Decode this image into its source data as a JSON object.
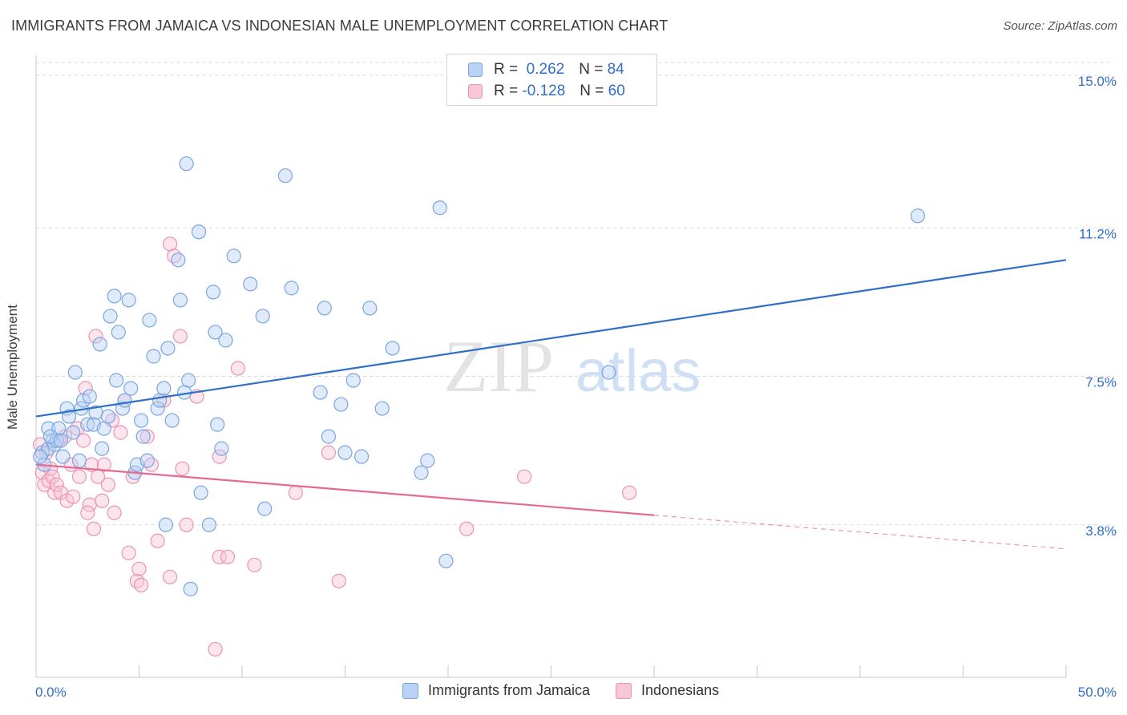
{
  "header": {
    "title": "IMMIGRANTS FROM JAMAICA VS INDONESIAN MALE UNEMPLOYMENT CORRELATION CHART",
    "source": "Source: ZipAtlas.com"
  },
  "watermark": {
    "zip": "ZIP",
    "atlas": "atlas"
  },
  "legend": {
    "rows": [
      {
        "r_label": "R =",
        "r_value": "0.262",
        "n_label": "N =",
        "n_value": "84"
      },
      {
        "r_label": "R =",
        "r_value": "-0.128",
        "n_label": "N =",
        "n_value": "60"
      }
    ]
  },
  "bottom_legend": {
    "series1": "Immigrants from Jamaica",
    "series2": "Indonesians"
  },
  "colors": {
    "blue_fill": "#b9d1f3",
    "blue_stroke": "#7aa6e0",
    "blue_line": "#2f6fc7",
    "pink_fill": "#f8c6d6",
    "pink_stroke": "#eb93b2",
    "pink_line": "#e46a94",
    "axis_text": "#2f6fc7",
    "grid": "#d9d9d9"
  },
  "chart_data": {
    "type": "scatter",
    "title": "IMMIGRANTS FROM JAMAICA VS INDONESIAN MALE UNEMPLOYMENT CORRELATION CHART",
    "xlabel": "",
    "ylabel": "Male Unemployment",
    "xlim": [
      0,
      50
    ],
    "ylim": [
      0,
      15.5
    ],
    "x_tick_labels": [
      "0.0%",
      "50.0%"
    ],
    "y_ticks": [
      3.8,
      7.5,
      11.2,
      15.0
    ],
    "y_tick_labels": [
      "3.8%",
      "7.5%",
      "11.2%",
      "15.0%"
    ],
    "grid": true,
    "legend_position": "top-center",
    "series": [
      {
        "name": "Immigrants from Jamaica",
        "R": 0.262,
        "N": 84,
        "trend": {
          "x": [
            0,
            50
          ],
          "y": [
            6.5,
            10.4
          ],
          "dashed_from": null
        },
        "points": [
          [
            0.3,
            5.6
          ],
          [
            0.4,
            5.3
          ],
          [
            0.6,
            5.7
          ],
          [
            0.6,
            6.2
          ],
          [
            0.8,
            5.9
          ],
          [
            0.9,
            5.8
          ],
          [
            1.0,
            5.9
          ],
          [
            1.1,
            6.2
          ],
          [
            1.3,
            5.5
          ],
          [
            1.5,
            6.7
          ],
          [
            1.6,
            6.5
          ],
          [
            1.8,
            6.1
          ],
          [
            1.9,
            7.6
          ],
          [
            2.1,
            5.4
          ],
          [
            2.2,
            6.7
          ],
          [
            2.3,
            6.9
          ],
          [
            2.5,
            6.3
          ],
          [
            2.6,
            7.0
          ],
          [
            2.8,
            6.3
          ],
          [
            2.9,
            6.6
          ],
          [
            3.1,
            8.3
          ],
          [
            3.2,
            5.7
          ],
          [
            3.3,
            6.2
          ],
          [
            3.6,
            9.0
          ],
          [
            3.8,
            9.5
          ],
          [
            3.9,
            7.4
          ],
          [
            4.0,
            8.6
          ],
          [
            4.2,
            6.7
          ],
          [
            4.3,
            6.9
          ],
          [
            4.5,
            9.4
          ],
          [
            4.6,
            7.2
          ],
          [
            4.8,
            5.1
          ],
          [
            4.9,
            5.3
          ],
          [
            5.1,
            6.4
          ],
          [
            5.2,
            6.0
          ],
          [
            5.4,
            5.4
          ],
          [
            5.5,
            8.9
          ],
          [
            5.7,
            8.0
          ],
          [
            5.9,
            6.7
          ],
          [
            6.0,
            6.9
          ],
          [
            6.2,
            7.2
          ],
          [
            6.3,
            3.8
          ],
          [
            6.4,
            8.2
          ],
          [
            6.6,
            6.4
          ],
          [
            6.9,
            10.4
          ],
          [
            7.0,
            9.4
          ],
          [
            7.2,
            7.1
          ],
          [
            7.3,
            12.8
          ],
          [
            7.4,
            7.4
          ],
          [
            7.5,
            2.2
          ],
          [
            7.9,
            11.1
          ],
          [
            8.0,
            4.6
          ],
          [
            8.4,
            3.8
          ],
          [
            8.6,
            9.6
          ],
          [
            8.7,
            8.6
          ],
          [
            8.8,
            6.3
          ],
          [
            9.2,
            8.4
          ],
          [
            9.6,
            10.5
          ],
          [
            10.4,
            9.8
          ],
          [
            11.0,
            9.0
          ],
          [
            11.1,
            4.2
          ],
          [
            12.1,
            12.5
          ],
          [
            12.4,
            9.7
          ],
          [
            13.8,
            7.1
          ],
          [
            14.0,
            9.2
          ],
          [
            14.2,
            6.0
          ],
          [
            14.8,
            6.8
          ],
          [
            15.0,
            5.6
          ],
          [
            15.4,
            7.4
          ],
          [
            15.8,
            5.5
          ],
          [
            16.2,
            9.2
          ],
          [
            16.8,
            6.7
          ],
          [
            17.3,
            8.2
          ],
          [
            18.7,
            5.1
          ],
          [
            19.0,
            5.4
          ],
          [
            19.6,
            11.7
          ],
          [
            19.9,
            2.9
          ],
          [
            27.8,
            7.6
          ],
          [
            42.8,
            11.5
          ],
          [
            0.2,
            5.5
          ],
          [
            0.7,
            6.0
          ],
          [
            1.2,
            5.9
          ],
          [
            3.5,
            6.5
          ],
          [
            9.0,
            5.7
          ]
        ]
      },
      {
        "name": "Indonesians",
        "R": -0.128,
        "N": 60,
        "trend": {
          "x": [
            0,
            50
          ],
          "y": [
            5.3,
            3.2
          ],
          "dashed_from": 30
        },
        "points": [
          [
            0.2,
            5.8
          ],
          [
            0.3,
            5.1
          ],
          [
            0.4,
            4.8
          ],
          [
            0.5,
            5.6
          ],
          [
            0.6,
            4.9
          ],
          [
            0.7,
            5.2
          ],
          [
            0.8,
            5.0
          ],
          [
            0.9,
            4.6
          ],
          [
            1.0,
            4.8
          ],
          [
            1.1,
            5.9
          ],
          [
            1.2,
            4.6
          ],
          [
            1.4,
            6.0
          ],
          [
            1.5,
            4.4
          ],
          [
            1.7,
            5.3
          ],
          [
            1.8,
            4.5
          ],
          [
            2.0,
            6.2
          ],
          [
            2.1,
            5.0
          ],
          [
            2.3,
            5.9
          ],
          [
            2.4,
            7.2
          ],
          [
            2.6,
            4.3
          ],
          [
            2.7,
            5.3
          ],
          [
            2.8,
            3.7
          ],
          [
            2.9,
            8.5
          ],
          [
            3.0,
            5.0
          ],
          [
            3.2,
            4.4
          ],
          [
            3.3,
            5.3
          ],
          [
            3.5,
            4.8
          ],
          [
            3.7,
            6.4
          ],
          [
            3.8,
            4.1
          ],
          [
            4.1,
            6.1
          ],
          [
            4.3,
            6.9
          ],
          [
            4.5,
            3.1
          ],
          [
            4.7,
            5.0
          ],
          [
            4.9,
            2.4
          ],
          [
            5.0,
            2.7
          ],
          [
            5.1,
            2.3
          ],
          [
            5.4,
            6.0
          ],
          [
            5.6,
            5.3
          ],
          [
            5.9,
            3.4
          ],
          [
            6.2,
            6.9
          ],
          [
            6.5,
            10.8
          ],
          [
            6.7,
            10.5
          ],
          [
            7.0,
            8.5
          ],
          [
            7.1,
            5.2
          ],
          [
            7.3,
            3.8
          ],
          [
            7.8,
            7.0
          ],
          [
            8.7,
            0.7
          ],
          [
            8.9,
            5.5
          ],
          [
            8.9,
            3.0
          ],
          [
            9.3,
            3.0
          ],
          [
            9.8,
            7.7
          ],
          [
            10.6,
            2.8
          ],
          [
            12.6,
            4.6
          ],
          [
            14.2,
            5.6
          ],
          [
            14.7,
            2.4
          ],
          [
            20.9,
            3.7
          ],
          [
            23.7,
            5.0
          ],
          [
            28.8,
            4.6
          ],
          [
            6.5,
            2.5
          ],
          [
            2.5,
            4.1
          ]
        ]
      }
    ]
  }
}
